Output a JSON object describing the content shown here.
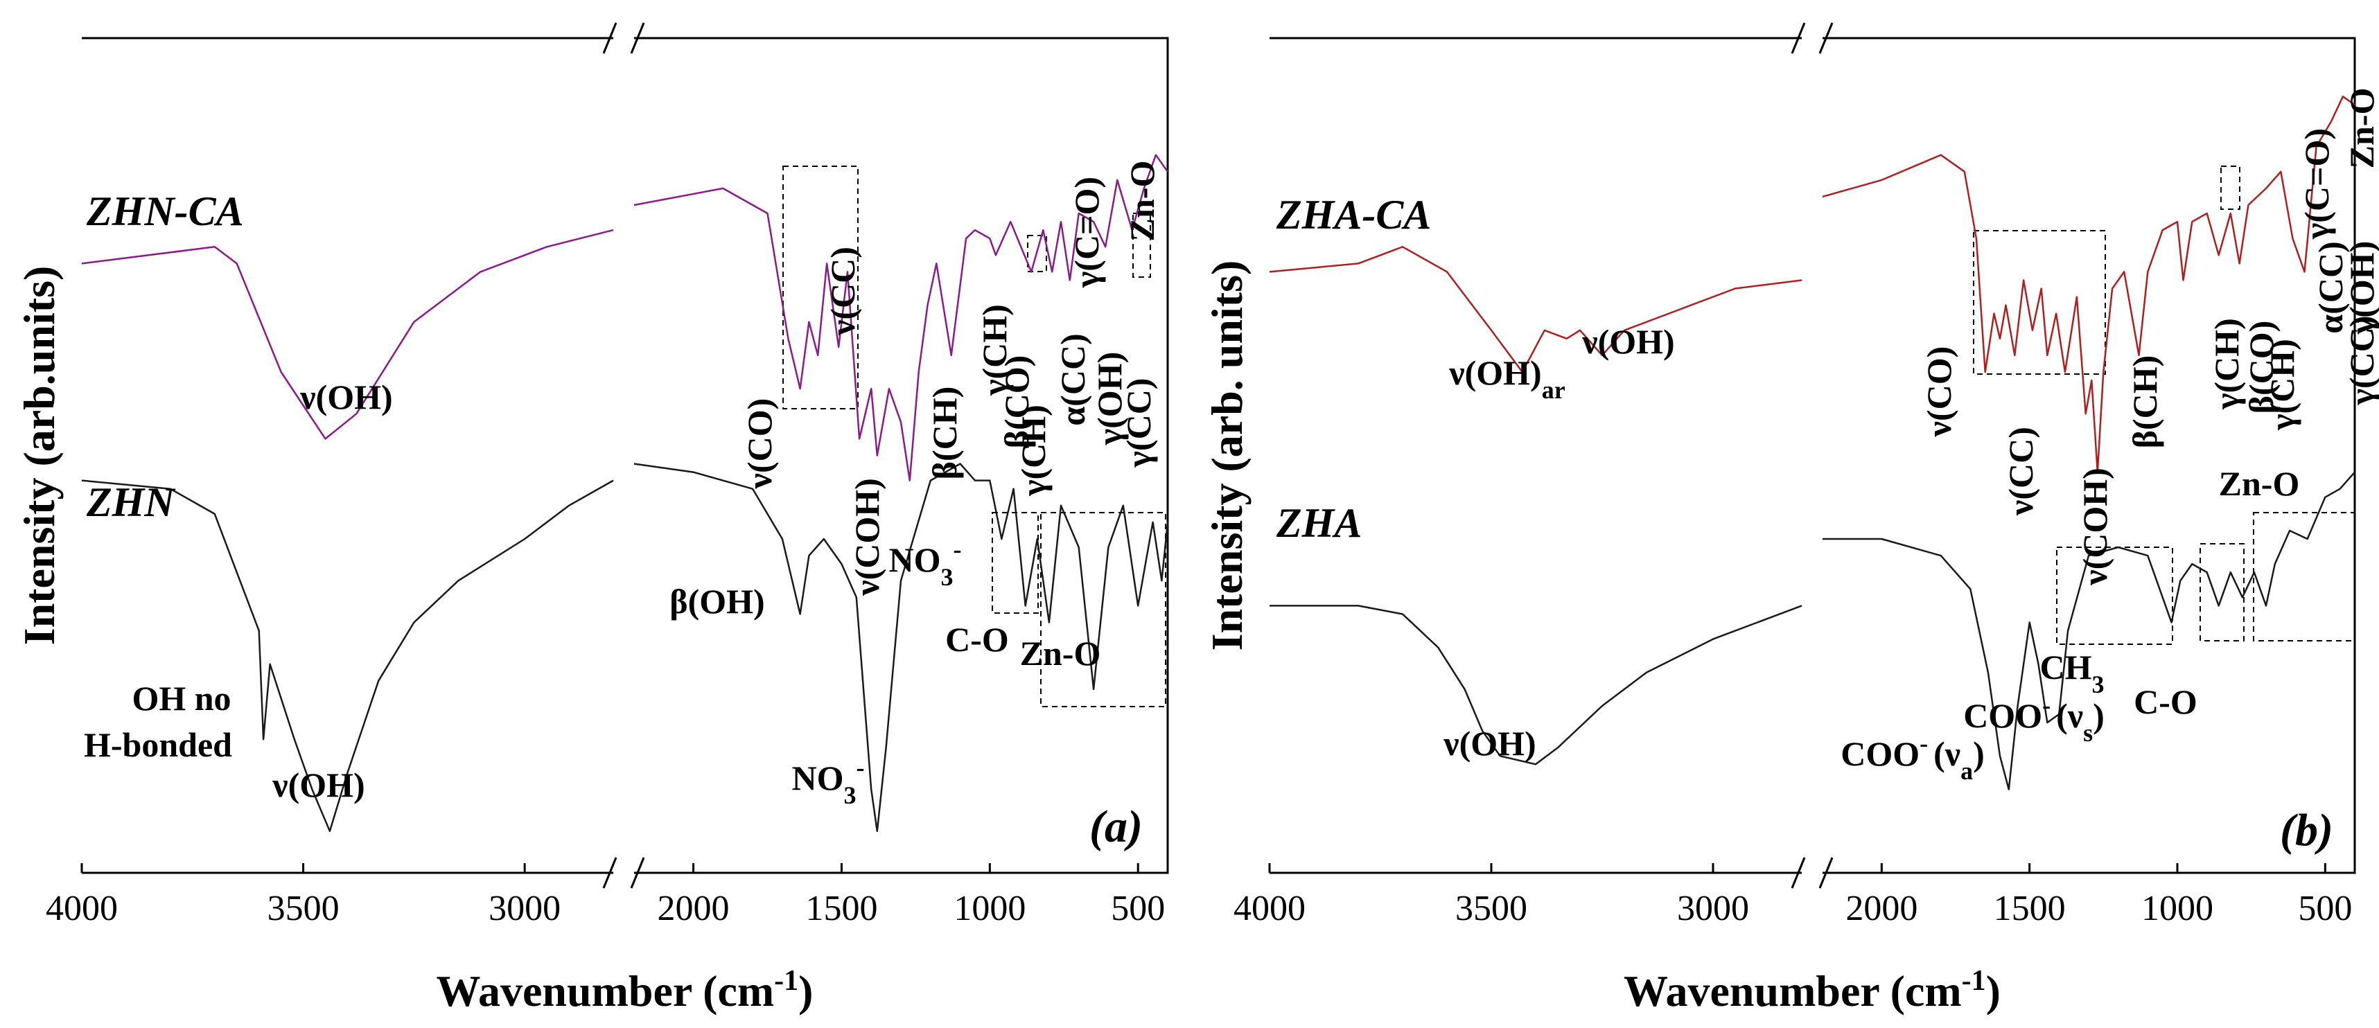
{
  "chart_data": [
    {
      "type": "line",
      "panel_label": "(a)",
      "xlabel": "Wavenumber (cm",
      "xlabel_sup": "-1",
      "xlabel_close": ")",
      "ylabel": "Intensity (arb.units)",
      "x_axis_break": true,
      "x_segments": [
        {
          "xlim": [
            4000,
            2800
          ],
          "ticks": [
            4000,
            3500,
            3000
          ]
        },
        {
          "xlim": [
            2200,
            400
          ],
          "ticks": [
            2000,
            1500,
            1000,
            500
          ]
        }
      ],
      "series": [
        {
          "name": "ZHN-CA",
          "color": "#8b1a8b",
          "points": [
            [
              4000,
              0.73
            ],
            [
              3700,
              0.75
            ],
            [
              3650,
              0.73
            ],
            [
              3550,
              0.6
            ],
            [
              3450,
              0.52
            ],
            [
              3380,
              0.55
            ],
            [
              3250,
              0.66
            ],
            [
              3100,
              0.72
            ],
            [
              2950,
              0.75
            ],
            [
              2800,
              0.77
            ],
            [
              2200,
              0.8
            ],
            [
              1900,
              0.82
            ],
            [
              1750,
              0.79
            ],
            [
              1680,
              0.64
            ],
            [
              1640,
              0.58
            ],
            [
              1610,
              0.66
            ],
            [
              1580,
              0.62
            ],
            [
              1550,
              0.73
            ],
            [
              1510,
              0.63
            ],
            [
              1480,
              0.72
            ],
            [
              1440,
              0.52
            ],
            [
              1400,
              0.58
            ],
            [
              1380,
              0.5
            ],
            [
              1340,
              0.58
            ],
            [
              1300,
              0.54
            ],
            [
              1270,
              0.47
            ],
            [
              1240,
              0.6
            ],
            [
              1210,
              0.68
            ],
            [
              1180,
              0.73
            ],
            [
              1130,
              0.62
            ],
            [
              1080,
              0.76
            ],
            [
              1050,
              0.77
            ],
            [
              1000,
              0.76
            ],
            [
              980,
              0.74
            ],
            [
              930,
              0.78
            ],
            [
              860,
              0.72
            ],
            [
              820,
              0.77
            ],
            [
              790,
              0.72
            ],
            [
              760,
              0.78
            ],
            [
              730,
              0.71
            ],
            [
              700,
              0.79
            ],
            [
              650,
              0.78
            ],
            [
              610,
              0.75
            ],
            [
              570,
              0.83
            ],
            [
              520,
              0.77
            ],
            [
              480,
              0.82
            ],
            [
              440,
              0.86
            ],
            [
              400,
              0.84
            ]
          ]
        },
        {
          "name": "ZHN",
          "color": "#1a1a1a",
          "points": [
            [
              4000,
              0.47
            ],
            [
              3800,
              0.46
            ],
            [
              3700,
              0.43
            ],
            [
              3650,
              0.36
            ],
            [
              3600,
              0.29
            ],
            [
              3590,
              0.16
            ],
            [
              3575,
              0.25
            ],
            [
              3520,
              0.16
            ],
            [
              3480,
              0.1
            ],
            [
              3440,
              0.05
            ],
            [
              3400,
              0.12
            ],
            [
              3330,
              0.23
            ],
            [
              3250,
              0.3
            ],
            [
              3150,
              0.35
            ],
            [
              3000,
              0.4
            ],
            [
              2900,
              0.44
            ],
            [
              2800,
              0.47
            ],
            [
              2200,
              0.49
            ],
            [
              2000,
              0.48
            ],
            [
              1800,
              0.46
            ],
            [
              1700,
              0.4
            ],
            [
              1640,
              0.31
            ],
            [
              1610,
              0.38
            ],
            [
              1560,
              0.4
            ],
            [
              1500,
              0.37
            ],
            [
              1450,
              0.33
            ],
            [
              1400,
              0.1
            ],
            [
              1380,
              0.05
            ],
            [
              1350,
              0.15
            ],
            [
              1300,
              0.35
            ],
            [
              1200,
              0.47
            ],
            [
              1100,
              0.49
            ],
            [
              1050,
              0.47
            ],
            [
              1000,
              0.47
            ],
            [
              960,
              0.4
            ],
            [
              920,
              0.46
            ],
            [
              880,
              0.32
            ],
            [
              840,
              0.4
            ],
            [
              800,
              0.3
            ],
            [
              760,
              0.44
            ],
            [
              700,
              0.39
            ],
            [
              650,
              0.22
            ],
            [
              600,
              0.39
            ],
            [
              550,
              0.44
            ],
            [
              500,
              0.32
            ],
            [
              450,
              0.42
            ],
            [
              420,
              0.35
            ],
            [
              400,
              0.42
            ]
          ]
        }
      ],
      "annotations": [
        {
          "text": "ZHN-CA",
          "role": "series-label"
        },
        {
          "text": "ZHN",
          "role": "series-label"
        },
        {
          "text": "ν(OH)",
          "x": 3380
        },
        {
          "text": "OH no",
          "x": 3630
        },
        {
          "text": "H-bonded",
          "x": 3670
        },
        {
          "text": "ν(OH)",
          "x": 3450
        },
        {
          "text": "ν(CO)",
          "x": 1710,
          "rotated": true
        },
        {
          "text": "ν(CC)",
          "x": 1520,
          "rotated": true
        },
        {
          "text": "ν(COH)",
          "x": 1360,
          "rotated": true
        },
        {
          "text": "β(CH)",
          "x": 1120,
          "rotated": true
        },
        {
          "text": "γ(CH)",
          "x": 930,
          "rotated": true
        },
        {
          "text": "β(CO)",
          "x": 890,
          "rotated": true
        },
        {
          "text": "γ(CH)",
          "x": 850,
          "rotated": true
        },
        {
          "text": "α(CC)",
          "x": 800,
          "rotated": true
        },
        {
          "text": "γ(C=O)",
          "x": 710,
          "rotated": true
        },
        {
          "text": "γ(OH)",
          "x": 640,
          "rotated": true
        },
        {
          "text": "γ(CC)",
          "x": 580,
          "rotated": true
        },
        {
          "text": "Zn-O",
          "x": 480,
          "rotated": true
        },
        {
          "text": "β(OH)",
          "x": 1670
        },
        {
          "text": "NO",
          "sub": "3",
          "sup": "-",
          "x": 1390
        },
        {
          "text": "NO",
          "sub": "3",
          "sup": "-",
          "x": 1020
        },
        {
          "text": "C-O",
          "x": 880
        },
        {
          "text": "Zn-O",
          "x": 560
        }
      ]
    },
    {
      "type": "line",
      "panel_label": "(b)",
      "xlabel": "Wavenumber (cm",
      "xlabel_sup": "-1",
      "xlabel_close": ")",
      "ylabel": "Intensity (arb. units)",
      "x_axis_break": true,
      "x_segments": [
        {
          "xlim": [
            4000,
            2800
          ],
          "ticks": [
            4000,
            3500,
            3000
          ]
        },
        {
          "xlim": [
            2200,
            400
          ],
          "ticks": [
            2000,
            1500,
            1000,
            500
          ]
        }
      ],
      "series": [
        {
          "name": "ZHA-CA",
          "color": "#b01f1f",
          "points": [
            [
              4000,
              0.72
            ],
            [
              3800,
              0.73
            ],
            [
              3700,
              0.75
            ],
            [
              3600,
              0.72
            ],
            [
              3500,
              0.65
            ],
            [
              3430,
              0.6
            ],
            [
              3380,
              0.65
            ],
            [
              3330,
              0.64
            ],
            [
              3300,
              0.65
            ],
            [
              3250,
              0.62
            ],
            [
              3200,
              0.65
            ],
            [
              3050,
              0.68
            ],
            [
              2950,
              0.7
            ],
            [
              2800,
              0.71
            ],
            [
              2200,
              0.81
            ],
            [
              2000,
              0.83
            ],
            [
              1800,
              0.86
            ],
            [
              1720,
              0.84
            ],
            [
              1680,
              0.76
            ],
            [
              1650,
              0.6
            ],
            [
              1620,
              0.67
            ],
            [
              1600,
              0.64
            ],
            [
              1580,
              0.68
            ],
            [
              1550,
              0.62
            ],
            [
              1520,
              0.71
            ],
            [
              1490,
              0.65
            ],
            [
              1460,
              0.7
            ],
            [
              1440,
              0.62
            ],
            [
              1410,
              0.67
            ],
            [
              1380,
              0.6
            ],
            [
              1340,
              0.69
            ],
            [
              1310,
              0.55
            ],
            [
              1290,
              0.59
            ],
            [
              1270,
              0.48
            ],
            [
              1250,
              0.6
            ],
            [
              1220,
              0.7
            ],
            [
              1180,
              0.72
            ],
            [
              1130,
              0.62
            ],
            [
              1100,
              0.72
            ],
            [
              1050,
              0.77
            ],
            [
              1000,
              0.78
            ],
            [
              980,
              0.71
            ],
            [
              950,
              0.78
            ],
            [
              900,
              0.79
            ],
            [
              860,
              0.74
            ],
            [
              820,
              0.79
            ],
            [
              790,
              0.73
            ],
            [
              760,
              0.8
            ],
            [
              700,
              0.82
            ],
            [
              650,
              0.84
            ],
            [
              610,
              0.76
            ],
            [
              570,
              0.72
            ],
            [
              530,
              0.87
            ],
            [
              480,
              0.9
            ],
            [
              440,
              0.93
            ],
            [
              400,
              0.92
            ]
          ]
        },
        {
          "name": "ZHA",
          "color": "#1a1a1a",
          "points": [
            [
              4000,
              0.32
            ],
            [
              3800,
              0.32
            ],
            [
              3700,
              0.31
            ],
            [
              3620,
              0.27
            ],
            [
              3560,
              0.22
            ],
            [
              3520,
              0.17
            ],
            [
              3480,
              0.14
            ],
            [
              3400,
              0.13
            ],
            [
              3350,
              0.15
            ],
            [
              3250,
              0.2
            ],
            [
              3150,
              0.24
            ],
            [
              3000,
              0.28
            ],
            [
              2900,
              0.3
            ],
            [
              2800,
              0.32
            ],
            [
              2200,
              0.4
            ],
            [
              2000,
              0.4
            ],
            [
              1800,
              0.38
            ],
            [
              1700,
              0.34
            ],
            [
              1640,
              0.24
            ],
            [
              1600,
              0.14
            ],
            [
              1570,
              0.1
            ],
            [
              1540,
              0.2
            ],
            [
              1500,
              0.3
            ],
            [
              1470,
              0.25
            ],
            [
              1440,
              0.18
            ],
            [
              1400,
              0.19
            ],
            [
              1370,
              0.29
            ],
            [
              1300,
              0.38
            ],
            [
              1200,
              0.39
            ],
            [
              1100,
              0.38
            ],
            [
              1050,
              0.33
            ],
            [
              1020,
              0.3
            ],
            [
              990,
              0.35
            ],
            [
              950,
              0.37
            ],
            [
              900,
              0.36
            ],
            [
              860,
              0.32
            ],
            [
              820,
              0.36
            ],
            [
              780,
              0.33
            ],
            [
              740,
              0.36
            ],
            [
              700,
              0.32
            ],
            [
              670,
              0.37
            ],
            [
              620,
              0.41
            ],
            [
              560,
              0.4
            ],
            [
              500,
              0.45
            ],
            [
              450,
              0.46
            ],
            [
              400,
              0.48
            ]
          ]
        }
      ],
      "annotations": [
        {
          "text": "ZHA-CA",
          "role": "series-label"
        },
        {
          "text": "ZHA",
          "role": "series-label"
        },
        {
          "text": "ν(OH)",
          "sub": "ar",
          "x": 3430
        },
        {
          "text": "ν(OH)",
          "x": 3280
        },
        {
          "text": "ν(CO)",
          "x": 1690,
          "rotated": true
        },
        {
          "text": "ν(CC)",
          "x": 1600,
          "rotated": true
        },
        {
          "text": "ν(COH)",
          "x": 1280,
          "rotated": true
        },
        {
          "text": "β(CH)",
          "x": 1100,
          "rotated": true
        },
        {
          "text": "γ(CH)",
          "x": 950,
          "rotated": true
        },
        {
          "text": "β(CO)",
          "x": 880,
          "rotated": true
        },
        {
          "text": "γ(CH)",
          "x": 830,
          "rotated": true
        },
        {
          "text": "γ(C=O)",
          "x": 730,
          "rotated": true
        },
        {
          "text": "α(CC)",
          "x": 690,
          "rotated": true
        },
        {
          "text": "γ(OH)",
          "x": 600,
          "rotated": true
        },
        {
          "text": "γ(CC)",
          "x": 560,
          "rotated": true
        },
        {
          "text": "Zn-O",
          "x": 460,
          "rotated": true
        },
        {
          "text": "ν(OH)",
          "x": 3400
        },
        {
          "text": "COO",
          "sup": "-",
          "mode": "(ν",
          "mode_sub": "a",
          "mode_close": ")",
          "x": 1550
        },
        {
          "text": "COO",
          "sup": "-",
          "mode": "(ν",
          "mode_sub": "s",
          "mode_close": ")",
          "x": 1400
        },
        {
          "text": "CH",
          "sub": "3",
          "x": 1270
        },
        {
          "text": "C-O",
          "x": 900
        },
        {
          "text": "Zn-O",
          "x": 560
        }
      ]
    }
  ]
}
